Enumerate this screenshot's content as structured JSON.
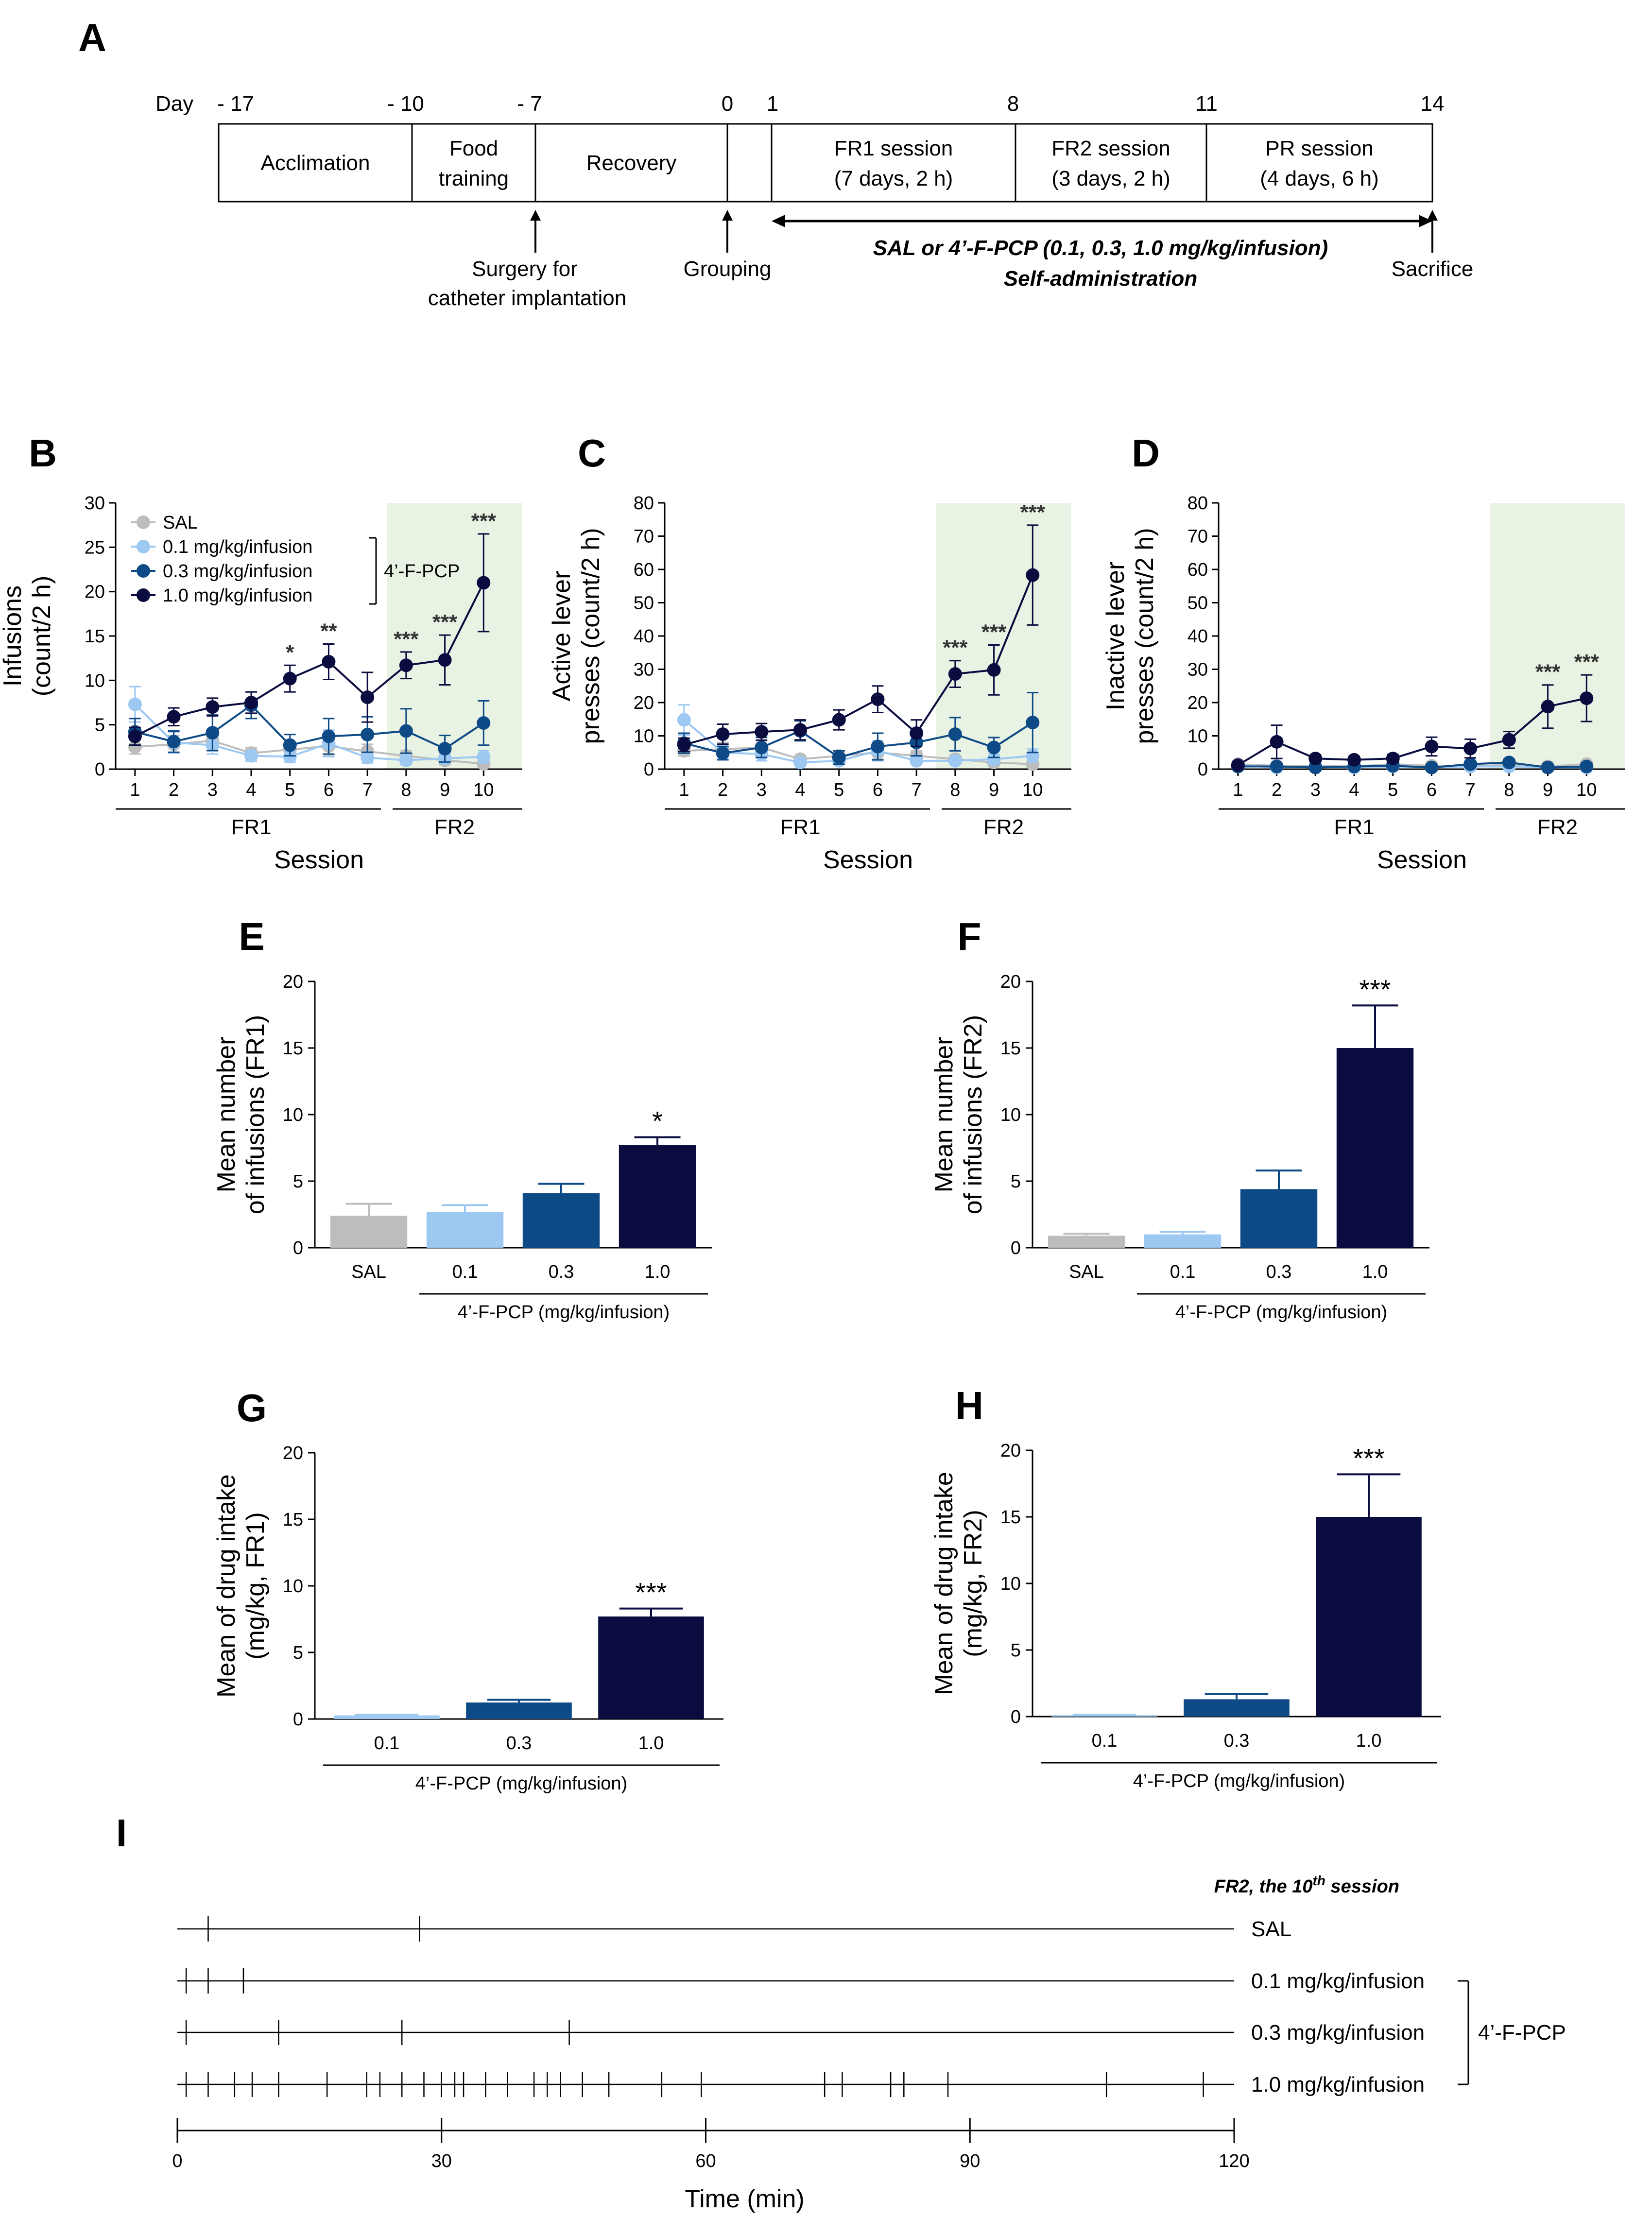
{
  "colors": {
    "SAL": "#bdbdbd",
    "d01": "#9cc8f2",
    "d03": "#0e4a86",
    "d10": "#0a0c40",
    "fr2_shade": "#e9f3e3"
  },
  "panelA": {
    "letter": "A",
    "day_prefix": "Day",
    "days": [
      "- 17",
      "- 10",
      "- 7",
      "0",
      "1",
      "8",
      "11",
      "14"
    ],
    "boxes": [
      {
        "line1": "Acclimation",
        "line2": ""
      },
      {
        "line1": "Food",
        "line2": "training"
      },
      {
        "line1": "Recovery",
        "line2": ""
      },
      {
        "line1": "",
        "line2": ""
      },
      {
        "line1": "FR1 session",
        "line2": "(7 days, 2 h)"
      },
      {
        "line1": "FR2 session",
        "line2": "(3 days, 2 h)"
      },
      {
        "line1": "PR session",
        "line2": "(4 days, 6 h)"
      }
    ],
    "surgery_line1": "Surgery for",
    "surgery_line2": "catheter implantation",
    "grouping": "Grouping",
    "treatment_line1": "SAL or 4’-F-PCP (0.1, 0.3, 1.0 mg/kg/infusion)",
    "treatment_line2": "Self-administration",
    "sacrifice": "Sacrifice"
  },
  "chart_data": [
    {
      "id": "B",
      "type": "line",
      "letter": "B",
      "ylabel_line1": "Infusions",
      "ylabel_line2": "(count/2 h)",
      "xlabel": "Session",
      "ylim": [
        0,
        30
      ],
      "yticks": [
        0,
        5,
        10,
        15,
        20,
        25,
        30
      ],
      "x": [
        1,
        2,
        3,
        4,
        5,
        6,
        7,
        8,
        9,
        10
      ],
      "phase_labels": [
        "FR1",
        "FR2"
      ],
      "legend": [
        "SAL",
        "0.1   mg/kg/infusion",
        "0.3   mg/kg/infusion",
        "1.0   mg/kg/infusion"
      ],
      "legend_group": "4’-F-PCP",
      "series": [
        {
          "name": "SAL",
          "values": [
            2.5,
            2.8,
            3.2,
            1.8,
            2.2,
            2.6,
            2.0,
            1.5,
            1.0,
            0.6
          ],
          "err": [
            0.8,
            1.0,
            1.2,
            0.6,
            0.7,
            1.0,
            0.8,
            0.6,
            0.5,
            0.3
          ]
        },
        {
          "name": "0.1 mg/kg/infusion",
          "values": [
            7.3,
            3.0,
            2.7,
            1.5,
            1.4,
            2.9,
            1.3,
            1.0,
            1.2,
            1.4
          ],
          "err": [
            2.0,
            1.2,
            1.0,
            0.6,
            0.6,
            1.5,
            0.6,
            0.5,
            0.5,
            0.7
          ]
        },
        {
          "name": "0.3 mg/kg/infusion",
          "values": [
            4.2,
            3.1,
            4.1,
            7.2,
            2.7,
            3.7,
            3.9,
            4.3,
            2.3,
            5.2
          ],
          "err": [
            1.5,
            1.2,
            2.0,
            1.5,
            1.2,
            2.0,
            2.0,
            2.5,
            1.5,
            2.5
          ]
        },
        {
          "name": "1.0 mg/kg/infusion",
          "values": [
            3.7,
            5.9,
            7.0,
            7.5,
            10.2,
            12.1,
            8.1,
            11.7,
            12.3,
            21.0
          ],
          "err": [
            1.0,
            1.0,
            1.0,
            1.2,
            1.5,
            2.0,
            2.8,
            1.5,
            2.8,
            5.5
          ]
        }
      ],
      "sig": [
        {
          "x": 5,
          "label": "*"
        },
        {
          "x": 6,
          "label": "**"
        },
        {
          "x": 8,
          "label": "***"
        },
        {
          "x": 9,
          "label": "***"
        },
        {
          "x": 10,
          "label": "***"
        }
      ]
    },
    {
      "id": "C",
      "type": "line",
      "letter": "C",
      "ylabel_line1": "Active lever",
      "ylabel_line2": "presses (count/2 h)",
      "xlabel": "Session",
      "ylim": [
        0,
        80
      ],
      "yticks": [
        0,
        10,
        20,
        30,
        40,
        50,
        60,
        70,
        80
      ],
      "x": [
        1,
        2,
        3,
        4,
        5,
        6,
        7,
        8,
        9,
        10
      ],
      "phase_labels": [
        "FR1",
        "FR2"
      ],
      "series": [
        {
          "name": "SAL",
          "values": [
            5.5,
            6.0,
            6.5,
            3.0,
            4.0,
            5.0,
            4.0,
            3.0,
            2.0,
            1.5
          ],
          "err": [
            1.5,
            2.0,
            2.0,
            1.0,
            1.5,
            2.0,
            1.5,
            1.0,
            1.0,
            0.8
          ]
        },
        {
          "name": "0.1 mg/kg/infusion",
          "values": [
            14.8,
            5.0,
            4.5,
            2.0,
            2.5,
            5.5,
            2.5,
            2.5,
            3.0,
            4.0
          ],
          "err": [
            4.5,
            2.0,
            2.0,
            1.0,
            1.0,
            3.0,
            1.0,
            1.0,
            1.5,
            2.0
          ]
        },
        {
          "name": "0.3 mg/kg/infusion",
          "values": [
            7.8,
            4.8,
            6.5,
            11.5,
            3.5,
            6.8,
            8.0,
            10.5,
            6.5,
            14.0
          ],
          "err": [
            3.0,
            2.0,
            3.0,
            3.0,
            2.0,
            4.0,
            4.0,
            5.0,
            3.0,
            9.0
          ]
        },
        {
          "name": "1.0 mg/kg/infusion",
          "values": [
            7.3,
            10.5,
            11.2,
            11.8,
            14.8,
            21.0,
            10.8,
            28.6,
            29.8,
            58.3
          ],
          "err": [
            2.0,
            3.0,
            2.5,
            3.0,
            3.0,
            4.0,
            4.0,
            4.0,
            7.5,
            15.0
          ]
        }
      ],
      "sig": [
        {
          "x": 8,
          "label": "***"
        },
        {
          "x": 9,
          "label": "***"
        },
        {
          "x": 10,
          "label": "***"
        }
      ]
    },
    {
      "id": "D",
      "type": "line",
      "letter": "D",
      "ylabel_line1": "Inactive lever",
      "ylabel_line2": "presses (count/2 h)",
      "xlabel": "Session",
      "ylim": [
        0,
        80
      ],
      "yticks": [
        0,
        10,
        20,
        30,
        40,
        50,
        60,
        70,
        80
      ],
      "x": [
        1,
        2,
        3,
        4,
        5,
        6,
        7,
        8,
        9,
        10
      ],
      "phase_labels": [
        "FR1",
        "FR2"
      ],
      "series": [
        {
          "name": "SAL",
          "values": [
            1.5,
            1.0,
            1.0,
            0.8,
            1.5,
            1.0,
            1.0,
            1.2,
            0.8,
            1.5
          ],
          "err": [
            0.5,
            0.5,
            0.5,
            0.5,
            0.8,
            0.5,
            0.5,
            0.5,
            0.5,
            0.8
          ]
        },
        {
          "name": "0.1 mg/kg/infusion",
          "values": [
            1.2,
            0.5,
            0.8,
            0.5,
            0.8,
            0.5,
            0.8,
            0.8,
            0.5,
            0.5
          ],
          "err": [
            0.5,
            0.3,
            0.4,
            0.3,
            0.4,
            0.3,
            0.4,
            0.4,
            0.3,
            0.3
          ]
        },
        {
          "name": "0.3 mg/kg/infusion",
          "values": [
            0.8,
            0.8,
            0.5,
            0.8,
            1.0,
            0.5,
            1.5,
            2.0,
            0.5,
            0.8
          ],
          "err": [
            0.4,
            0.5,
            0.3,
            0.5,
            0.5,
            0.3,
            0.8,
            1.0,
            0.3,
            0.4
          ]
        },
        {
          "name": "1.0 mg/kg/infusion",
          "values": [
            1.2,
            8.2,
            3.2,
            2.8,
            3.2,
            6.8,
            6.2,
            8.8,
            18.8,
            21.3
          ],
          "err": [
            0.8,
            5.0,
            1.0,
            1.0,
            1.2,
            2.8,
            2.8,
            2.5,
            6.5,
            7.0
          ]
        }
      ],
      "sig": [
        {
          "x": 9,
          "label": "***"
        },
        {
          "x": 10,
          "label": "***"
        }
      ]
    },
    {
      "id": "E",
      "type": "bar",
      "letter": "E",
      "ylabel_line1": "Mean number",
      "ylabel_line2": "of infusions (FR1)",
      "categories": [
        "SAL",
        "0.1",
        "0.3",
        "1.0"
      ],
      "values": [
        2.4,
        2.7,
        4.1,
        7.7
      ],
      "err": [
        0.9,
        0.5,
        0.7,
        0.6
      ],
      "bar_colors": [
        "SAL",
        "d01",
        "d03",
        "d10"
      ],
      "ylim": [
        0,
        20
      ],
      "yticks": [
        0,
        5,
        10,
        15,
        20
      ],
      "group_label": "4’-F-PCP (mg/kg/infusion)",
      "sig": [
        {
          "index": 3,
          "label": "*"
        }
      ]
    },
    {
      "id": "F",
      "type": "bar",
      "letter": "F",
      "ylabel_line1": "Mean number",
      "ylabel_line2": "of infusions (FR2)",
      "categories": [
        "SAL",
        "0.1",
        "0.3",
        "1.0"
      ],
      "values": [
        0.9,
        1.0,
        4.4,
        15.0
      ],
      "err": [
        0.15,
        0.2,
        1.4,
        3.2
      ],
      "bar_colors": [
        "SAL",
        "d01",
        "d03",
        "d10"
      ],
      "ylim": [
        0,
        20
      ],
      "yticks": [
        0,
        5,
        10,
        15,
        20
      ],
      "group_label": "4’-F-PCP (mg/kg/infusion)",
      "sig": [
        {
          "index": 3,
          "label": "***"
        }
      ]
    },
    {
      "id": "G",
      "type": "bar",
      "letter": "G",
      "ylabel_line1": "Mean of drug intake",
      "ylabel_line2": "(mg/kg, FR1)",
      "categories": [
        "0.1",
        "0.3",
        "1.0"
      ],
      "values": [
        0.27,
        1.24,
        7.7
      ],
      "err": [
        0.05,
        0.2,
        0.6
      ],
      "bar_colors": [
        "d01",
        "d03",
        "d10"
      ],
      "ylim": [
        0,
        20
      ],
      "yticks": [
        0,
        5,
        10,
        15,
        20
      ],
      "group_label": "4’-F-PCP (mg/kg/infusion)",
      "sig": [
        {
          "index": 2,
          "label": "***"
        }
      ]
    },
    {
      "id": "H",
      "type": "bar",
      "letter": "H",
      "ylabel_line1": "Mean of drug intake",
      "ylabel_line2": "(mg/kg, FR2)",
      "categories": [
        "0.1",
        "0.3",
        "1.0"
      ],
      "values": [
        0.1,
        1.3,
        15.0
      ],
      "err": [
        0.03,
        0.4,
        3.2
      ],
      "bar_colors": [
        "d01",
        "d03",
        "d10"
      ],
      "ylim": [
        0,
        20
      ],
      "yticks": [
        0,
        5,
        10,
        15,
        20
      ],
      "group_label": "4’-F-PCP (mg/kg/infusion)",
      "sig": [
        {
          "index": 2,
          "label": "***"
        }
      ]
    },
    {
      "id": "I",
      "type": "event_raster",
      "letter": "I",
      "title": "FR2, the 10th session",
      "title_main": "FR2, the 10",
      "title_sup": "th",
      "title_tail": " session",
      "xlabel": "Time (min)",
      "xlim": [
        0,
        120
      ],
      "xticks": [
        0,
        30,
        60,
        90,
        120
      ],
      "group_label": "4’-F-PCP",
      "rows": [
        {
          "label": "SAL",
          "events": [
            3.5,
            27.5
          ]
        },
        {
          "label": "0.1 mg/kg/infusion",
          "events": [
            1,
            3.5,
            7.5
          ]
        },
        {
          "label": "0.3 mg/kg/infusion",
          "events": [
            1,
            11.5,
            25.5,
            44.5
          ]
        },
        {
          "label": "1.0 mg/kg/infusion",
          "events": [
            1,
            3.5,
            6.5,
            8.5,
            11.5,
            17,
            21.5,
            23,
            25.5,
            28,
            30,
            31.5,
            32.5,
            35,
            37.5,
            40.5,
            42,
            43.5,
            46,
            49,
            55,
            59.5,
            73.5,
            75.5,
            81,
            82.5,
            87.5,
            105.5,
            116.5
          ]
        }
      ]
    }
  ]
}
